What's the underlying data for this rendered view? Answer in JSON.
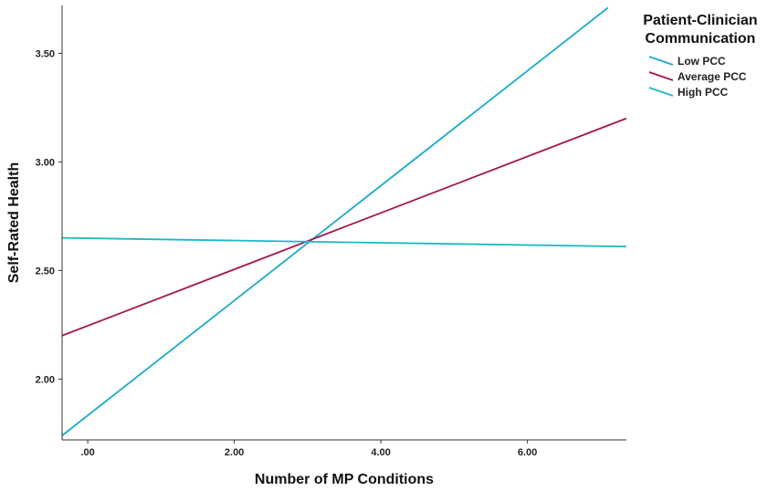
{
  "chart_data": {
    "type": "line",
    "xlabel": "Number of MP Conditions",
    "ylabel": "Self-Rated Health",
    "xlim": [
      -0.35,
      7.35
    ],
    "ylim": [
      1.72,
      3.72
    ],
    "xticks": [
      0,
      2,
      4,
      6
    ],
    "xtick_labels": [
      ".00",
      "2.00",
      "4.00",
      "6.00"
    ],
    "yticks": [
      2.0,
      2.5,
      3.0,
      3.5
    ],
    "ytick_labels": [
      "2.00",
      "2.50",
      "3.00",
      "3.50"
    ],
    "grid": false,
    "legend": {
      "title_lines": [
        "Patient-Clinician",
        "Communication"
      ],
      "placement": "top-right"
    },
    "series": [
      {
        "name": "Low PCC",
        "color": "#1aabc9",
        "x": [
          -0.35,
          7.1
        ],
        "y": [
          1.74,
          3.71
        ]
      },
      {
        "name": "Average PCC",
        "color": "#a2184b",
        "x": [
          -0.35,
          7.35
        ],
        "y": [
          2.2,
          3.2
        ]
      },
      {
        "name": "High PCC",
        "color": "#1cb8c3",
        "x": [
          -0.35,
          7.35
        ],
        "y": [
          2.65,
          2.61
        ]
      }
    ]
  }
}
